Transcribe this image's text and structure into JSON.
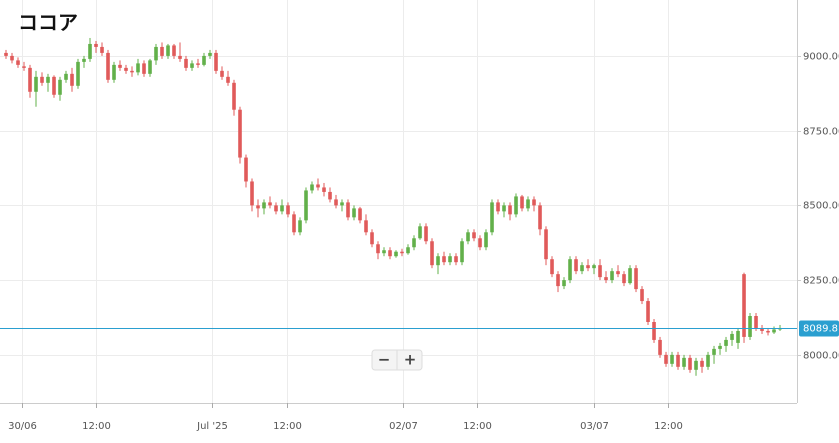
{
  "chart_data": {
    "type": "candlestick",
    "title": "ココア",
    "candles": [
      [
        9010,
        9020,
        8990,
        9000
      ],
      [
        9000,
        9010,
        8975,
        8985
      ],
      [
        8985,
        8995,
        8960,
        8970
      ],
      [
        8965,
        8980,
        8950,
        8960
      ],
      [
        8960,
        8970,
        8860,
        8880
      ],
      [
        8880,
        8950,
        8830,
        8930
      ],
      [
        8930,
        8945,
        8900,
        8910
      ],
      [
        8910,
        8940,
        8880,
        8930
      ],
      [
        8930,
        8935,
        8860,
        8870
      ],
      [
        8870,
        8930,
        8850,
        8920
      ],
      [
        8920,
        8950,
        8910,
        8940
      ],
      [
        8940,
        8960,
        8880,
        8900
      ],
      [
        8900,
        8990,
        8890,
        8980
      ],
      [
        8980,
        9000,
        8960,
        8990
      ],
      [
        8990,
        9060,
        8980,
        9040
      ],
      [
        9040,
        9050,
        9010,
        9030
      ],
      [
        9030,
        9045,
        9000,
        9010
      ],
      [
        9010,
        9020,
        8910,
        8920
      ],
      [
        8920,
        8980,
        8910,
        8970
      ],
      [
        8970,
        8985,
        8950,
        8960
      ],
      [
        8960,
        8970,
        8940,
        8950
      ],
      [
        8950,
        8965,
        8930,
        8945
      ],
      [
        8945,
        8990,
        8935,
        8975
      ],
      [
        8975,
        8985,
        8930,
        8940
      ],
      [
        8940,
        8990,
        8930,
        8985
      ],
      [
        8985,
        9040,
        8970,
        9030
      ],
      [
        9030,
        9045,
        8990,
        9000
      ],
      [
        9000,
        9040,
        8990,
        9035
      ],
      [
        9035,
        9040,
        8990,
        9000
      ],
      [
        9000,
        9045,
        8980,
        8990
      ],
      [
        8990,
        9000,
        8950,
        8960
      ],
      [
        8960,
        8985,
        8950,
        8975
      ],
      [
        8975,
        8990,
        8960,
        8970
      ],
      [
        8970,
        9010,
        8965,
        9000
      ],
      [
        9000,
        9020,
        8990,
        9010
      ],
      [
        9010,
        9020,
        8940,
        8950
      ],
      [
        8950,
        8965,
        8920,
        8930
      ],
      [
        8930,
        8950,
        8900,
        8910
      ],
      [
        8910,
        8920,
        8800,
        8820
      ],
      [
        8820,
        8830,
        8640,
        8660
      ],
      [
        8660,
        8670,
        8560,
        8580
      ],
      [
        8580,
        8590,
        8480,
        8500
      ],
      [
        8500,
        8520,
        8460,
        8490
      ],
      [
        8490,
        8520,
        8470,
        8510
      ],
      [
        8510,
        8530,
        8490,
        8500
      ],
      [
        8500,
        8510,
        8470,
        8480
      ],
      [
        8480,
        8520,
        8470,
        8500
      ],
      [
        8500,
        8510,
        8460,
        8470
      ],
      [
        8470,
        8480,
        8400,
        8410
      ],
      [
        8410,
        8460,
        8400,
        8450
      ],
      [
        8450,
        8560,
        8440,
        8550
      ],
      [
        8550,
        8580,
        8540,
        8570
      ],
      [
        8570,
        8590,
        8550,
        8560
      ],
      [
        8560,
        8575,
        8530,
        8545
      ],
      [
        8545,
        8560,
        8510,
        8520
      ],
      [
        8520,
        8535,
        8490,
        8500
      ],
      [
        8500,
        8520,
        8480,
        8510
      ],
      [
        8510,
        8520,
        8450,
        8460
      ],
      [
        8460,
        8500,
        8450,
        8490
      ],
      [
        8490,
        8495,
        8440,
        8450
      ],
      [
        8450,
        8470,
        8400,
        8410
      ],
      [
        8410,
        8420,
        8360,
        8370
      ],
      [
        8370,
        8380,
        8320,
        8340
      ],
      [
        8340,
        8360,
        8330,
        8350
      ],
      [
        8350,
        8360,
        8320,
        8330
      ],
      [
        8330,
        8350,
        8325,
        8345
      ],
      [
        8345,
        8355,
        8330,
        8340
      ],
      [
        8340,
        8370,
        8335,
        8360
      ],
      [
        8360,
        8400,
        8350,
        8390
      ],
      [
        8390,
        8440,
        8385,
        8430
      ],
      [
        8430,
        8440,
        8370,
        8380
      ],
      [
        8380,
        8390,
        8290,
        8300
      ],
      [
        8300,
        8340,
        8270,
        8330
      ],
      [
        8330,
        8345,
        8300,
        8310
      ],
      [
        8310,
        8340,
        8300,
        8330
      ],
      [
        8330,
        8340,
        8300,
        8310
      ],
      [
        8310,
        8390,
        8300,
        8380
      ],
      [
        8380,
        8420,
        8370,
        8410
      ],
      [
        8410,
        8420,
        8380,
        8390
      ],
      [
        8390,
        8400,
        8350,
        8360
      ],
      [
        8360,
        8420,
        8350,
        8410
      ],
      [
        8410,
        8520,
        8400,
        8510
      ],
      [
        8510,
        8520,
        8470,
        8480
      ],
      [
        8480,
        8510,
        8460,
        8500
      ],
      [
        8500,
        8510,
        8450,
        8470
      ],
      [
        8470,
        8540,
        8460,
        8530
      ],
      [
        8530,
        8535,
        8480,
        8490
      ],
      [
        8490,
        8530,
        8480,
        8520
      ],
      [
        8520,
        8530,
        8480,
        8500
      ],
      [
        8500,
        8510,
        8400,
        8420
      ],
      [
        8420,
        8430,
        8300,
        8320
      ],
      [
        8320,
        8330,
        8260,
        8270
      ],
      [
        8270,
        8280,
        8210,
        8230
      ],
      [
        8230,
        8260,
        8220,
        8250
      ],
      [
        8250,
        8330,
        8240,
        8320
      ],
      [
        8320,
        8330,
        8270,
        8280
      ],
      [
        8280,
        8310,
        8270,
        8300
      ],
      [
        8300,
        8320,
        8280,
        8290
      ],
      [
        8290,
        8305,
        8270,
        8300
      ],
      [
        8300,
        8320,
        8250,
        8260
      ],
      [
        8260,
        8280,
        8240,
        8250
      ],
      [
        8250,
        8290,
        8240,
        8280
      ],
      [
        8280,
        8300,
        8260,
        8270
      ],
      [
        8270,
        8280,
        8230,
        8240
      ],
      [
        8240,
        8300,
        8235,
        8290
      ],
      [
        8290,
        8300,
        8210,
        8220
      ],
      [
        8220,
        8230,
        8170,
        8180
      ],
      [
        8180,
        8190,
        8100,
        8110
      ],
      [
        8110,
        8120,
        8040,
        8050
      ],
      [
        8050,
        8060,
        7990,
        8000
      ],
      [
        8000,
        8010,
        7960,
        7970
      ],
      [
        7970,
        8010,
        7960,
        8000
      ],
      [
        8000,
        8010,
        7950,
        7960
      ],
      [
        7960,
        8000,
        7950,
        7990
      ],
      [
        7990,
        8000,
        7940,
        7950
      ],
      [
        7950,
        7990,
        7930,
        7980
      ],
      [
        7980,
        7990,
        7940,
        7960
      ],
      [
        7960,
        8010,
        7950,
        8000
      ],
      [
        8000,
        8030,
        7970,
        8020
      ],
      [
        8020,
        8040,
        8000,
        8030
      ],
      [
        8030,
        8060,
        8010,
        8050
      ],
      [
        8050,
        8080,
        8030,
        8070
      ],
      [
        8040,
        8090,
        8020,
        8080
      ],
      [
        8270,
        8275,
        8040,
        8060
      ],
      [
        8060,
        8140,
        8050,
        8130
      ],
      [
        8130,
        8140,
        8080,
        8090
      ],
      [
        8090,
        8100,
        8070,
        8080
      ],
      [
        8080,
        8090,
        8065,
        8075
      ],
      [
        8075,
        8095,
        8070,
        8085
      ],
      [
        8085,
        8100,
        8080,
        8090
      ]
    ],
    "up_color": "#62b04a",
    "down_color": "#e05a5a",
    "xlim": [
      -1,
      131.83
    ],
    "xticks": [
      {
        "value": 2.7,
        "label": "30/06"
      },
      {
        "value": 15,
        "label": "12:00"
      },
      {
        "value": 34.3,
        "label": "Jul '25"
      },
      {
        "value": 46.8,
        "label": "12:00"
      },
      {
        "value": 66.2,
        "label": "02/07"
      },
      {
        "value": 78.5,
        "label": "12:00"
      },
      {
        "value": 98,
        "label": "03/07"
      },
      {
        "value": 110.3,
        "label": "12:00"
      }
    ],
    "ylim": [
      7839,
      9187
    ],
    "yticks": [
      {
        "value": 8000,
        "label": "8000.00"
      },
      {
        "value": 8250,
        "label": "8250.00"
      },
      {
        "value": 8500,
        "label": "8500.00"
      },
      {
        "value": 8750,
        "label": "8750.00"
      },
      {
        "value": 9000,
        "label": "9000.00"
      }
    ],
    "grid": true,
    "last_price": 8089.81,
    "last_price_color": "#2a9fd0"
  },
  "controls": {
    "zoom_out": "−",
    "zoom_in": "+"
  }
}
